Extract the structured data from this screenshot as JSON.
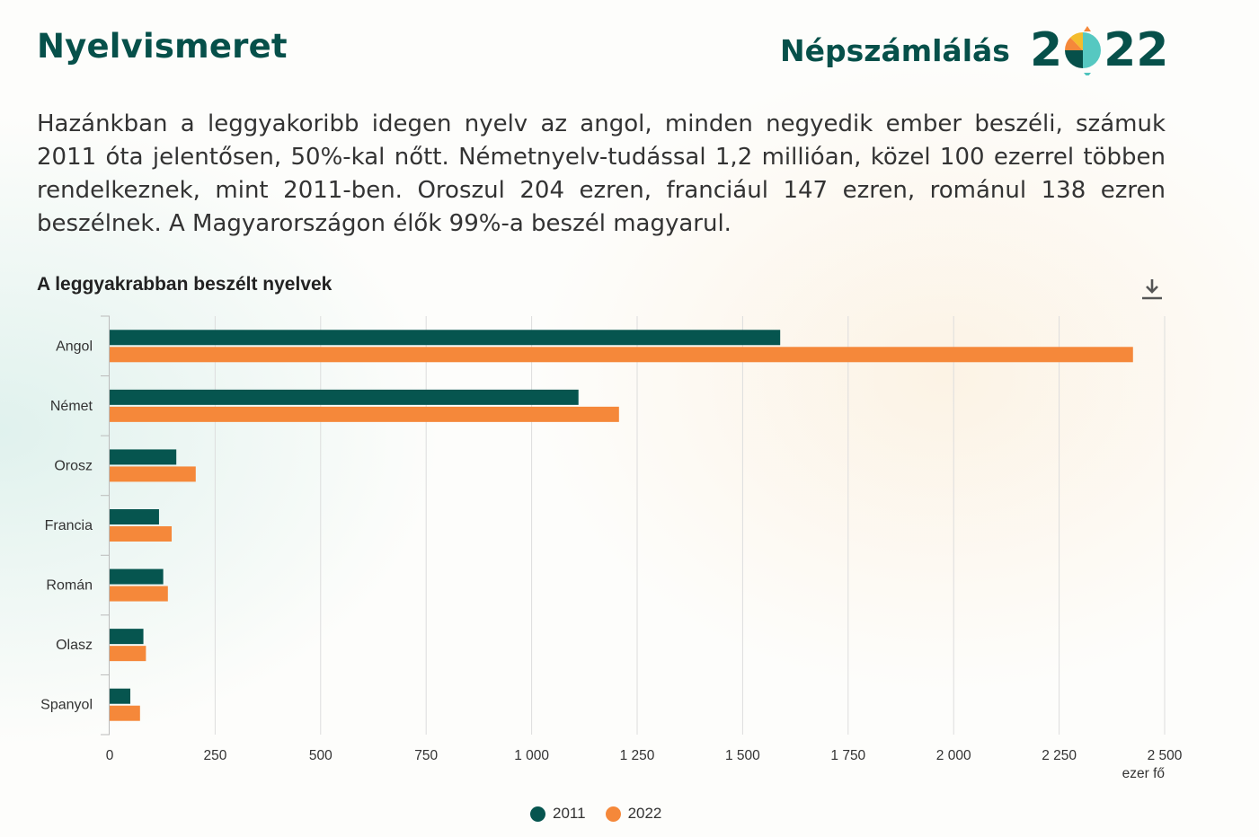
{
  "header": {
    "title": "Nyelvismeret",
    "brand": {
      "word": "Népszámlálás",
      "year_left": "2",
      "year_right": "22"
    }
  },
  "intro": "Hazánkban a leggyakoribb idegen nyelv az angol, minden negyedik ember beszéli, számuk 2011 óta jelentősen, 50%-kal nőtt. Németnyelv-tudással 1,2 millióan, közel 100 ezerrel többen rendelkeznek, mint 2011-ben. Oroszul 204 ezren, franciául 147 ezren, románul 138 ezren beszélnek. A Magyarországon élők 99%-a beszél magyarul.",
  "toolbar": {
    "download_icon": "download-icon"
  },
  "colors": {
    "brand": "#06504a",
    "series_2011": "#06554f",
    "series_2022": "#f5883a",
    "grid": "#dddddd"
  },
  "chart_data": {
    "type": "bar",
    "orientation": "horizontal",
    "title": "A leggyakrabban beszélt nyelvek",
    "categories": [
      "Angol",
      "Német",
      "Orosz",
      "Francia",
      "Román",
      "Olasz",
      "Spanyol"
    ],
    "series": [
      {
        "name": "2011",
        "color": "#06554f",
        "values": [
          1589,
          1111,
          158,
          117,
          127,
          80,
          49
        ]
      },
      {
        "name": "2022",
        "color": "#f5883a",
        "values": [
          2425,
          1207,
          204,
          147,
          138,
          86,
          72
        ]
      }
    ],
    "xlim": [
      0,
      2500
    ],
    "xticks": [
      0,
      250,
      500,
      750,
      1000,
      1250,
      1500,
      1750,
      2000,
      2250,
      2500
    ],
    "xtick_labels": [
      "0",
      "250",
      "500",
      "750",
      "1 000",
      "1 250",
      "1 500",
      "1 750",
      "2 000",
      "2 250",
      "2 500"
    ],
    "xlabel": "ezer fő",
    "grid": true,
    "legend": "bottom-center"
  }
}
